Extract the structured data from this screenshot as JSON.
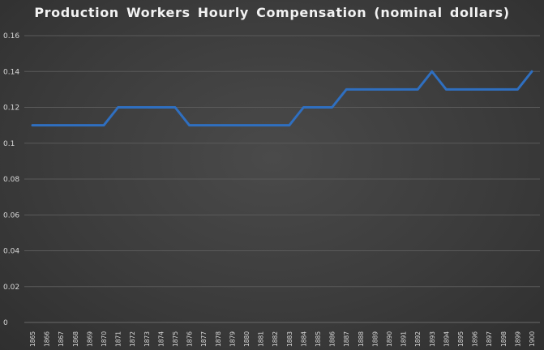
{
  "chart_data": {
    "type": "line",
    "title": "Production Workers Hourly Compensation (nominal dollars)",
    "xlabel": "",
    "ylabel": "",
    "ylim": [
      0,
      0.16
    ],
    "yticks": [
      "0",
      "0.02",
      "0.04",
      "0.06",
      "0.08",
      "0.1",
      "0.12",
      "0.14",
      "0.16"
    ],
    "yticks_values": [
      0,
      0.02,
      0.04,
      0.06,
      0.08,
      0.1,
      0.12,
      0.14,
      0.16
    ],
    "grid": true,
    "legend": "none",
    "categories": [
      "1865",
      "1866",
      "1867",
      "1868",
      "1869",
      "1870",
      "1871",
      "1872",
      "1873",
      "1874",
      "1875",
      "1876",
      "1877",
      "1878",
      "1879",
      "1880",
      "1881",
      "1882",
      "1883",
      "1884",
      "1885",
      "1886",
      "1887",
      "1888",
      "1889",
      "1890",
      "1891",
      "1892",
      "1893",
      "1894",
      "1895",
      "1896",
      "1897",
      "1898",
      "1899",
      "1900"
    ],
    "series": [
      {
        "color": "#2f6fc0",
        "values": [
          0.11,
          0.11,
          0.11,
          0.11,
          0.11,
          0.11,
          0.12,
          0.12,
          0.12,
          0.12,
          0.12,
          0.11,
          0.11,
          0.11,
          0.11,
          0.11,
          0.11,
          0.11,
          0.11,
          0.12,
          0.12,
          0.12,
          0.13,
          0.13,
          0.13,
          0.13,
          0.13,
          0.13,
          0.14,
          0.13,
          0.13,
          0.13,
          0.13,
          0.13,
          0.13,
          0.14
        ]
      }
    ]
  }
}
